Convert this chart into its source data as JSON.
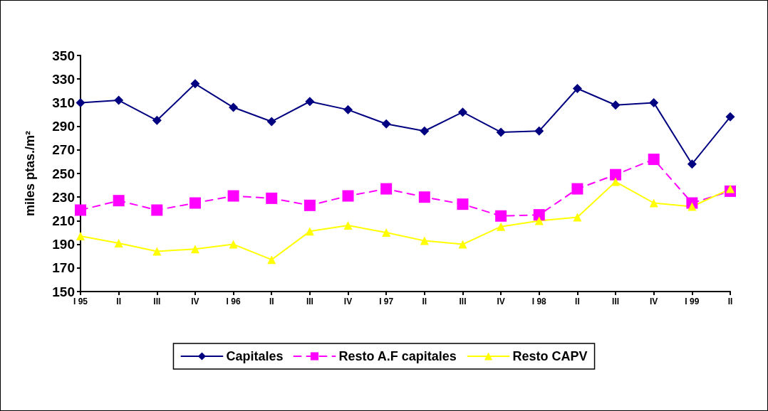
{
  "chart_data": {
    "type": "line",
    "ylabel": "miles ptas./m²",
    "categories": [
      "I 95",
      "II",
      "III",
      "IV",
      "I 96",
      "II",
      "III",
      "IV",
      "I 97",
      "II",
      "III",
      "IV",
      "I 98",
      "II",
      "III",
      "IV",
      "I 99",
      "II"
    ],
    "series": [
      {
        "name": "Capitales",
        "color": "#000080",
        "marker": "diamond",
        "line_style": "solid",
        "values": [
          310,
          312,
          295,
          326,
          306,
          294,
          311,
          304,
          292,
          286,
          302,
          285,
          286,
          322,
          308,
          310,
          258,
          298
        ]
      },
      {
        "name": "Resto A.F capitales",
        "color": "#ff00ff",
        "marker": "square",
        "line_style": "dashed",
        "values": [
          219,
          227,
          219,
          225,
          231,
          229,
          223,
          231,
          237,
          230,
          224,
          214,
          215,
          237,
          249,
          262,
          225,
          235
        ]
      },
      {
        "name": "Resto CAPV",
        "color": "#ffff00",
        "marker": "triangle",
        "line_style": "solid",
        "values": [
          197,
          191,
          184,
          186,
          190,
          177,
          201,
          206,
          200,
          193,
          190,
          205,
          210,
          213,
          243,
          225,
          222,
          237
        ]
      }
    ],
    "ylim": [
      150,
      350
    ],
    "yticks": [
      150,
      170,
      190,
      210,
      230,
      250,
      270,
      290,
      310,
      330,
      350
    ],
    "grid": false,
    "legend": "bottom"
  }
}
